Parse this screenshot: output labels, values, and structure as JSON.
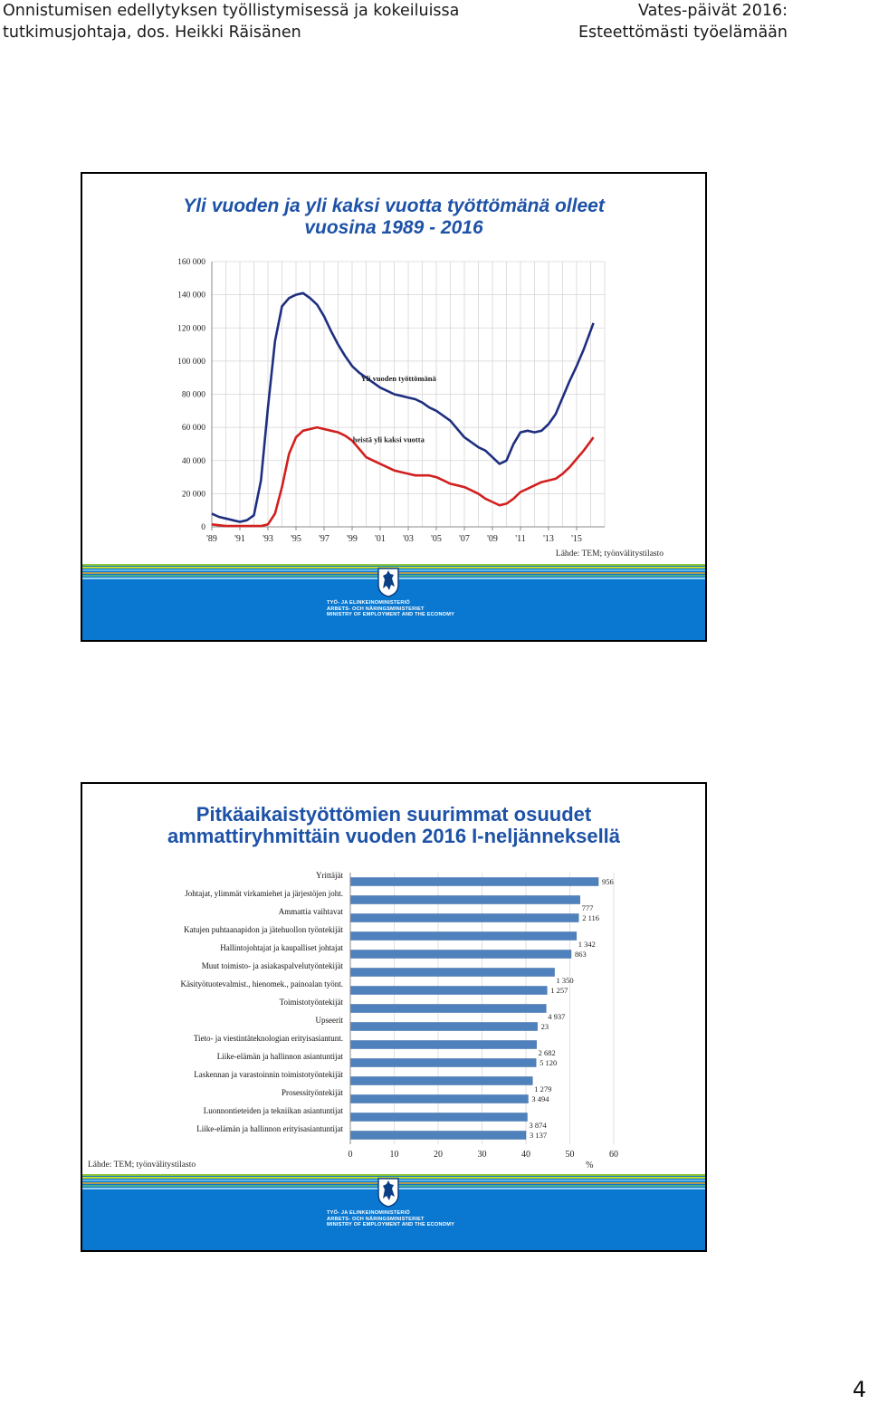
{
  "header": {
    "left_line1": "Onnistumisen edellytyksen työllistymisessä ja kokeiluissa",
    "left_line2": "tutkimusjohtaja, dos. Heikki Räisänen",
    "right_line1": "Vates-päivät 2016:",
    "right_line2": "Esteettömästi työelämään"
  },
  "footer": {
    "ministry_line1": "TYÖ- JA ELINKEINOMINISTERIÖ",
    "ministry_line2": "ARBETS- OCH NÄRINGSMINISTERIET",
    "ministry_line3": "MINISTRY OF EMPLOYMENT AND THE ECONOMY"
  },
  "slide1": {
    "title_line1": "Yli vuoden ja yli kaksi vuotta työttömänä olleet",
    "title_line2": "vuosina 1989 - 2016",
    "source": "Lähde: TEM; työnvälitystilasto"
  },
  "slide2": {
    "title_line1": "Pitkäaikaistyöttömien suurimmat osuudet",
    "title_line2": "ammattiryhmittäin vuoden 2016 I-neljänneksellä",
    "source": "Lähde: TEM; työnvälitystilasto"
  },
  "page_number": "4",
  "colors": {
    "title_blue": "#1d52a6",
    "series_over_1y": "#1f2f80",
    "series_over_2y": "#d21f1f",
    "bar": "#4f81bd",
    "footer_blue": "#0a78d0"
  },
  "chart_data": [
    {
      "type": "line",
      "title": "Yli vuoden ja yli kaksi vuotta työttömänä olleet vuosina 1989 - 2016",
      "y_ticks": [
        0,
        20000,
        40000,
        60000,
        80000,
        100000,
        120000,
        140000,
        160000
      ],
      "y_tick_labels": [
        "0",
        "20 000",
        "40 000",
        "60 000",
        "80 000",
        "100 000",
        "120 000",
        "140 000",
        "160 000"
      ],
      "x_ticks": [
        1989,
        1991,
        1993,
        1995,
        1997,
        1999,
        2001,
        2003,
        2005,
        2007,
        2009,
        2011,
        2013,
        2015
      ],
      "x_tick_labels": [
        "'89",
        "'91",
        "'93",
        "'95",
        "'97",
        "'99",
        "'01",
        "'03",
        "'05",
        "'07",
        "'09",
        "'11",
        "'13",
        "'15"
      ],
      "ylim": [
        0,
        160000
      ],
      "xlim": [
        1989,
        2017
      ],
      "grid": true,
      "series": [
        {
          "name": "Yli vuoden työttömänä",
          "x": [
            1989,
            1989.5,
            1990,
            1990.5,
            1991,
            1991.5,
            1992,
            1992.5,
            1993,
            1993.5,
            1994,
            1994.5,
            1995,
            1995.5,
            1996,
            1996.5,
            1997,
            1997.5,
            1998,
            1998.5,
            1999,
            1999.5,
            2000,
            2000.5,
            2001,
            2001.5,
            2002,
            2002.5,
            2003,
            2003.5,
            2004,
            2004.5,
            2005,
            2005.5,
            2006,
            2006.5,
            2007,
            2007.5,
            2008,
            2008.5,
            2009,
            2009.5,
            2010,
            2010.5,
            2011,
            2011.5,
            2012,
            2012.5,
            2013,
            2013.5,
            2014,
            2014.5,
            2015,
            2015.5,
            2016.2
          ],
          "y": [
            8000,
            6000,
            5000,
            4000,
            3000,
            4000,
            7000,
            28000,
            72000,
            112000,
            133000,
            138000,
            140000,
            141000,
            138000,
            134000,
            127000,
            118000,
            110000,
            103000,
            97000,
            93000,
            90000,
            87000,
            84000,
            82000,
            80000,
            79000,
            78000,
            77000,
            75000,
            72000,
            70000,
            67000,
            64000,
            59000,
            54000,
            51000,
            48000,
            46000,
            42000,
            38000,
            40000,
            50000,
            57000,
            58000,
            57000,
            58000,
            62000,
            68000,
            78000,
            88000,
            97000,
            107000,
            123000
          ]
        },
        {
          "name": "heistä yli kaksi vuotta",
          "x": [
            1989,
            1989.5,
            1990,
            1990.5,
            1991,
            1991.5,
            1992,
            1992.5,
            1993,
            1993.5,
            1994,
            1994.5,
            1995,
            1995.5,
            1996,
            1996.5,
            1997,
            1997.5,
            1998,
            1998.5,
            1999,
            1999.5,
            2000,
            2000.5,
            2001,
            2001.5,
            2002,
            2002.5,
            2003,
            2003.5,
            2004,
            2004.5,
            2005,
            2005.5,
            2006,
            2006.5,
            2007,
            2007.5,
            2008,
            2008.5,
            2009,
            2009.5,
            2010,
            2010.5,
            2011,
            2011.5,
            2012,
            2012.5,
            2013,
            2013.5,
            2014,
            2014.5,
            2015,
            2015.5,
            2016.2
          ],
          "y": [
            1500,
            1000,
            500,
            500,
            500,
            500,
            500,
            500,
            1500,
            8000,
            24000,
            44000,
            54000,
            58000,
            59000,
            60000,
            59000,
            58000,
            57000,
            55000,
            52000,
            47000,
            42000,
            40000,
            38000,
            36000,
            34000,
            33000,
            32000,
            31000,
            31000,
            31000,
            30000,
            28000,
            26000,
            25000,
            24000,
            22000,
            20000,
            17000,
            15000,
            13000,
            14000,
            17000,
            21000,
            23000,
            25000,
            27000,
            28000,
            29000,
            32000,
            36000,
            41000,
            46000,
            54000
          ]
        }
      ],
      "annotations": [
        "Yli vuoden työttömänä",
        "heistä yli kaksi vuotta"
      ]
    },
    {
      "type": "bar",
      "orientation": "horizontal",
      "title": "Pitkäaikaistyöttömien suurimmat osuudet ammattiryhmittäin vuoden 2016 I-neljänneksellä",
      "xlabel": "%",
      "xlim": [
        0,
        60
      ],
      "x_ticks": [
        0,
        10,
        20,
        30,
        40,
        50,
        60
      ],
      "grid": true,
      "categories": [
        "Yrittäjät",
        "Johtajat, ylimmät virkamiehet ja järjestöjen johtajat",
        "Ammattia vaihtavat",
        "Katujen puhtaanapidon ja jätehuollon työntekijät",
        "Hallintojohtajat ja kaupalliset johtajat",
        "Muut toimisto- ja asiakaspalvelutyöntekijät",
        "Käsityötuotevalmist., hienomek., painoalan työnt.",
        "Toimistotyöntekijät",
        "Upseerit",
        "Tieto- ja viestintäteknologian erityisasiantunt.",
        "Liike-elämän ja hallinnon asiantuntijat",
        "Laskennan ja varastoinnin toimistotyöntekijät",
        "Prosessityöntekijät",
        "Luonnontieteiden ja tekniikan asiantuntijat",
        "Liike-elämän ja hallinnon erityisasiantuntijat"
      ],
      "category_labels_shown": [
        "Yrittäjät",
        "Johtajat, ylimmät virkamiehet ja järjestöjen joht.",
        "Ammattia vaihtavat",
        "Katujen puhtaanapidon ja jätehuollon työntekijät",
        "Hallintojohtajat ja kaupalliset johtajat",
        "Muut toimisto- ja asiakaspalvelutyöntekijät",
        "Käsityötuotevalmist., hienomek., painoalan työnt.",
        "Toimistotyöntekijät",
        "Upseerit",
        "Tieto- ja viestintäteknologian erityisasiantunt.",
        "Liike-elämän ja hallinnon asiantuntijat",
        "Laskennan ja varastoinnin toimistotyöntekijät",
        "Prosessityöntekijät",
        "Luonnontieteiden ja tekniikan asiantuntijat",
        "Liike-elämän ja hallinnon erityisasiantuntijat"
      ],
      "values": [
        56.5,
        52.3,
        52.0,
        51.5,
        50.3,
        46.5,
        44.8,
        44.6,
        42.6,
        42.4,
        42.3,
        41.5,
        40.5,
        40.3,
        40.0
      ],
      "data_labels": [
        "956",
        "777",
        "2 116",
        "1 342",
        "863",
        "1 350",
        "1 257",
        "4 937",
        "23",
        "2 682",
        "5 120",
        "1 279",
        "3 494",
        "3 874",
        "3 137"
      ]
    }
  ]
}
